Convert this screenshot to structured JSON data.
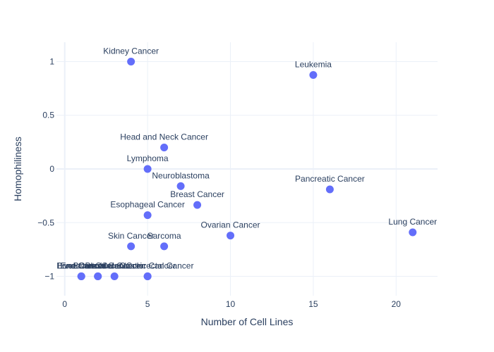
{
  "chart_data": {
    "type": "scatter",
    "xlabel": "Number of Cell Lines",
    "ylabel": "Homophiliness",
    "xlim": [
      -0.5,
      22.5
    ],
    "ylim": [
      -1.18,
      1.18
    ],
    "x_ticks": [
      0,
      5,
      10,
      15,
      20
    ],
    "y_ticks": [
      1,
      0.5,
      0,
      -0.5,
      -1
    ],
    "y_tick_labels": [
      "1",
      "0.5",
      "0",
      "−0.5",
      "−1"
    ],
    "grid": true,
    "marker_color": "#636efa",
    "points": [
      {
        "label": "Kidney Cancer",
        "x": 4,
        "y": 1
      },
      {
        "label": "Leukemia",
        "x": 15,
        "y": 0.875
      },
      {
        "label": "Head and Neck Cancer",
        "x": 6,
        "y": 0.2
      },
      {
        "label": "Lymphoma",
        "x": 5,
        "y": 0
      },
      {
        "label": "Neuroblastoma",
        "x": 7,
        "y": -0.16
      },
      {
        "label": "Pancreatic Cancer",
        "x": 16,
        "y": -0.19
      },
      {
        "label": "Breast Cancer",
        "x": 8,
        "y": -0.335
      },
      {
        "label": "Esophageal Cancer",
        "x": 5,
        "y": -0.43
      },
      {
        "label": "Lung Cancer",
        "x": 21,
        "y": -0.59
      },
      {
        "label": "Ovarian Cancer",
        "x": 10,
        "y": -0.62
      },
      {
        "label": "Skin Cancer",
        "x": 4,
        "y": -0.72
      },
      {
        "label": "Sarcoma",
        "x": 6,
        "y": -0.72
      },
      {
        "label": "Liver Cancer",
        "x": 1,
        "y": -1
      },
      {
        "label": "Bone Cancer",
        "x": 1,
        "y": -1
      },
      {
        "label": "Endometrial Cancer",
        "x": 2,
        "y": -1
      },
      {
        "label": "Brain Cancer",
        "x": 2,
        "y": -1
      },
      {
        "label": "Bladder Cancer",
        "x": 3,
        "y": -1
      },
      {
        "label": "Colon/Colorectal Cancer",
        "x": 5,
        "y": -1
      },
      {
        "label": "Gastric Cancer",
        "x": 5,
        "y": -1
      }
    ]
  }
}
